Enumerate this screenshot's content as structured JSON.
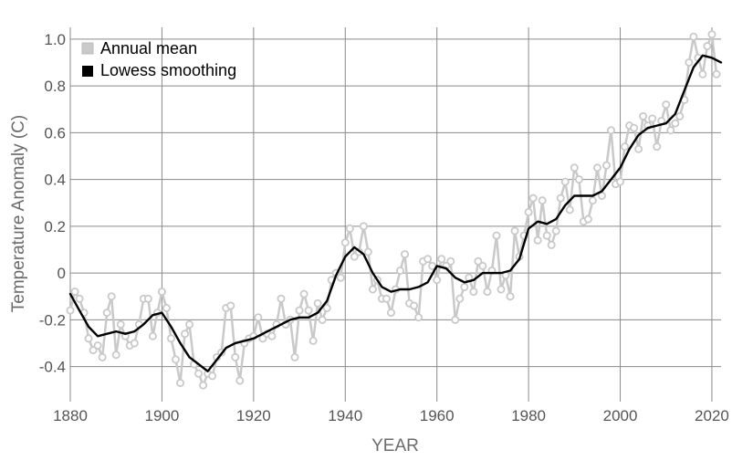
{
  "chart_data": {
    "type": "line",
    "title": "",
    "xlabel": "YEAR",
    "ylabel": "Temperature Anomaly (C)",
    "xlim": [
      1880,
      2022
    ],
    "ylim": [
      -0.55,
      1.05
    ],
    "xticks": [
      1880,
      1900,
      1920,
      1940,
      1960,
      1980,
      2000,
      2020
    ],
    "yticks": [
      1.0,
      0.8,
      0.6,
      0.4,
      0.2,
      0,
      -0.2,
      -0.4
    ],
    "ytick_labels": [
      "1.0",
      "0.8",
      "0.6",
      "0.4",
      "0.2",
      "0",
      "-0.2",
      "-0.4"
    ],
    "grid": true,
    "legend_position": "top-left",
    "series": [
      {
        "name": "Annual mean",
        "color": "#c9c9c9",
        "marker": "circle",
        "x": [
          1880,
          1881,
          1882,
          1883,
          1884,
          1885,
          1886,
          1887,
          1888,
          1889,
          1890,
          1891,
          1892,
          1893,
          1894,
          1895,
          1896,
          1897,
          1898,
          1899,
          1900,
          1901,
          1902,
          1903,
          1904,
          1905,
          1906,
          1907,
          1908,
          1909,
          1910,
          1911,
          1912,
          1913,
          1914,
          1915,
          1916,
          1917,
          1918,
          1919,
          1920,
          1921,
          1922,
          1923,
          1924,
          1925,
          1926,
          1927,
          1928,
          1929,
          1930,
          1931,
          1932,
          1933,
          1934,
          1935,
          1936,
          1937,
          1938,
          1939,
          1940,
          1941,
          1942,
          1943,
          1944,
          1945,
          1946,
          1947,
          1948,
          1949,
          1950,
          1951,
          1952,
          1953,
          1954,
          1955,
          1956,
          1957,
          1958,
          1959,
          1960,
          1961,
          1962,
          1963,
          1964,
          1965,
          1966,
          1967,
          1968,
          1969,
          1970,
          1971,
          1972,
          1973,
          1974,
          1975,
          1976,
          1977,
          1978,
          1979,
          1980,
          1981,
          1982,
          1983,
          1984,
          1985,
          1986,
          1987,
          1988,
          1989,
          1990,
          1991,
          1992,
          1993,
          1994,
          1995,
          1996,
          1997,
          1998,
          1999,
          2000,
          2001,
          2002,
          2003,
          2004,
          2005,
          2006,
          2007,
          2008,
          2009,
          2010,
          2011,
          2012,
          2013,
          2014,
          2015,
          2016,
          2017,
          2018,
          2019,
          2020,
          2021
        ],
        "values": [
          -0.16,
          -0.08,
          -0.11,
          -0.17,
          -0.28,
          -0.33,
          -0.31,
          -0.36,
          -0.17,
          -0.1,
          -0.35,
          -0.22,
          -0.27,
          -0.31,
          -0.3,
          -0.22,
          -0.11,
          -0.11,
          -0.27,
          -0.17,
          -0.08,
          -0.15,
          -0.28,
          -0.37,
          -0.47,
          -0.26,
          -0.22,
          -0.39,
          -0.43,
          -0.48,
          -0.43,
          -0.44,
          -0.36,
          -0.34,
          -0.15,
          -0.14,
          -0.36,
          -0.46,
          -0.3,
          -0.28,
          -0.27,
          -0.19,
          -0.28,
          -0.26,
          -0.27,
          -0.22,
          -0.11,
          -0.22,
          -0.2,
          -0.36,
          -0.16,
          -0.09,
          -0.16,
          -0.29,
          -0.13,
          -0.2,
          -0.15,
          -0.03,
          0.0,
          -0.02,
          0.13,
          0.19,
          0.07,
          0.09,
          0.2,
          0.09,
          -0.07,
          -0.03,
          -0.11,
          -0.11,
          -0.17,
          -0.07,
          0.01,
          0.08,
          -0.13,
          -0.14,
          -0.19,
          0.05,
          0.06,
          0.03,
          -0.03,
          0.06,
          0.03,
          0.05,
          -0.2,
          -0.11,
          -0.06,
          -0.02,
          -0.08,
          0.05,
          0.03,
          -0.08,
          0.01,
          0.16,
          -0.07,
          -0.01,
          -0.1,
          0.18,
          0.07,
          0.16,
          0.26,
          0.32,
          0.14,
          0.31,
          0.16,
          0.12,
          0.18,
          0.32,
          0.39,
          0.27,
          0.45,
          0.4,
          0.22,
          0.23,
          0.31,
          0.45,
          0.33,
          0.46,
          0.61,
          0.38,
          0.39,
          0.54,
          0.63,
          0.62,
          0.53,
          0.67,
          0.63,
          0.66,
          0.54,
          0.65,
          0.72,
          0.61,
          0.64,
          0.67,
          0.74,
          0.9,
          1.01,
          0.92,
          0.85,
          0.97,
          1.02,
          0.85
        ]
      },
      {
        "name": "Lowess smoothing",
        "color": "#000000",
        "x": [
          1880,
          1882,
          1884,
          1886,
          1888,
          1890,
          1892,
          1894,
          1896,
          1898,
          1900,
          1902,
          1904,
          1906,
          1908,
          1910,
          1912,
          1914,
          1916,
          1918,
          1920,
          1922,
          1924,
          1926,
          1928,
          1930,
          1932,
          1934,
          1936,
          1938,
          1940,
          1942,
          1944,
          1946,
          1948,
          1950,
          1952,
          1954,
          1956,
          1958,
          1960,
          1962,
          1964,
          1966,
          1968,
          1970,
          1972,
          1974,
          1976,
          1978,
          1980,
          1982,
          1984,
          1986,
          1988,
          1990,
          1992,
          1994,
          1996,
          1998,
          2000,
          2002,
          2004,
          2006,
          2008,
          2010,
          2012,
          2014,
          2016,
          2018,
          2020,
          2022
        ],
        "values": [
          -0.09,
          -0.16,
          -0.23,
          -0.27,
          -0.26,
          -0.25,
          -0.26,
          -0.25,
          -0.22,
          -0.18,
          -0.17,
          -0.23,
          -0.3,
          -0.36,
          -0.39,
          -0.42,
          -0.37,
          -0.32,
          -0.3,
          -0.29,
          -0.28,
          -0.26,
          -0.24,
          -0.22,
          -0.2,
          -0.19,
          -0.19,
          -0.17,
          -0.12,
          -0.01,
          0.07,
          0.11,
          0.08,
          0.0,
          -0.06,
          -0.08,
          -0.07,
          -0.07,
          -0.06,
          -0.04,
          0.03,
          0.02,
          -0.02,
          -0.04,
          -0.03,
          0.0,
          0.0,
          0.0,
          0.01,
          0.06,
          0.19,
          0.22,
          0.21,
          0.23,
          0.29,
          0.33,
          0.33,
          0.33,
          0.35,
          0.4,
          0.45,
          0.53,
          0.59,
          0.62,
          0.63,
          0.64,
          0.68,
          0.78,
          0.88,
          0.93,
          0.92,
          0.9
        ]
      }
    ]
  },
  "legend": {
    "items": [
      {
        "label": "Annual mean",
        "swatch_color": "#c9c9c9"
      },
      {
        "label": "Lowess smoothing",
        "swatch_color": "#000000"
      }
    ]
  }
}
